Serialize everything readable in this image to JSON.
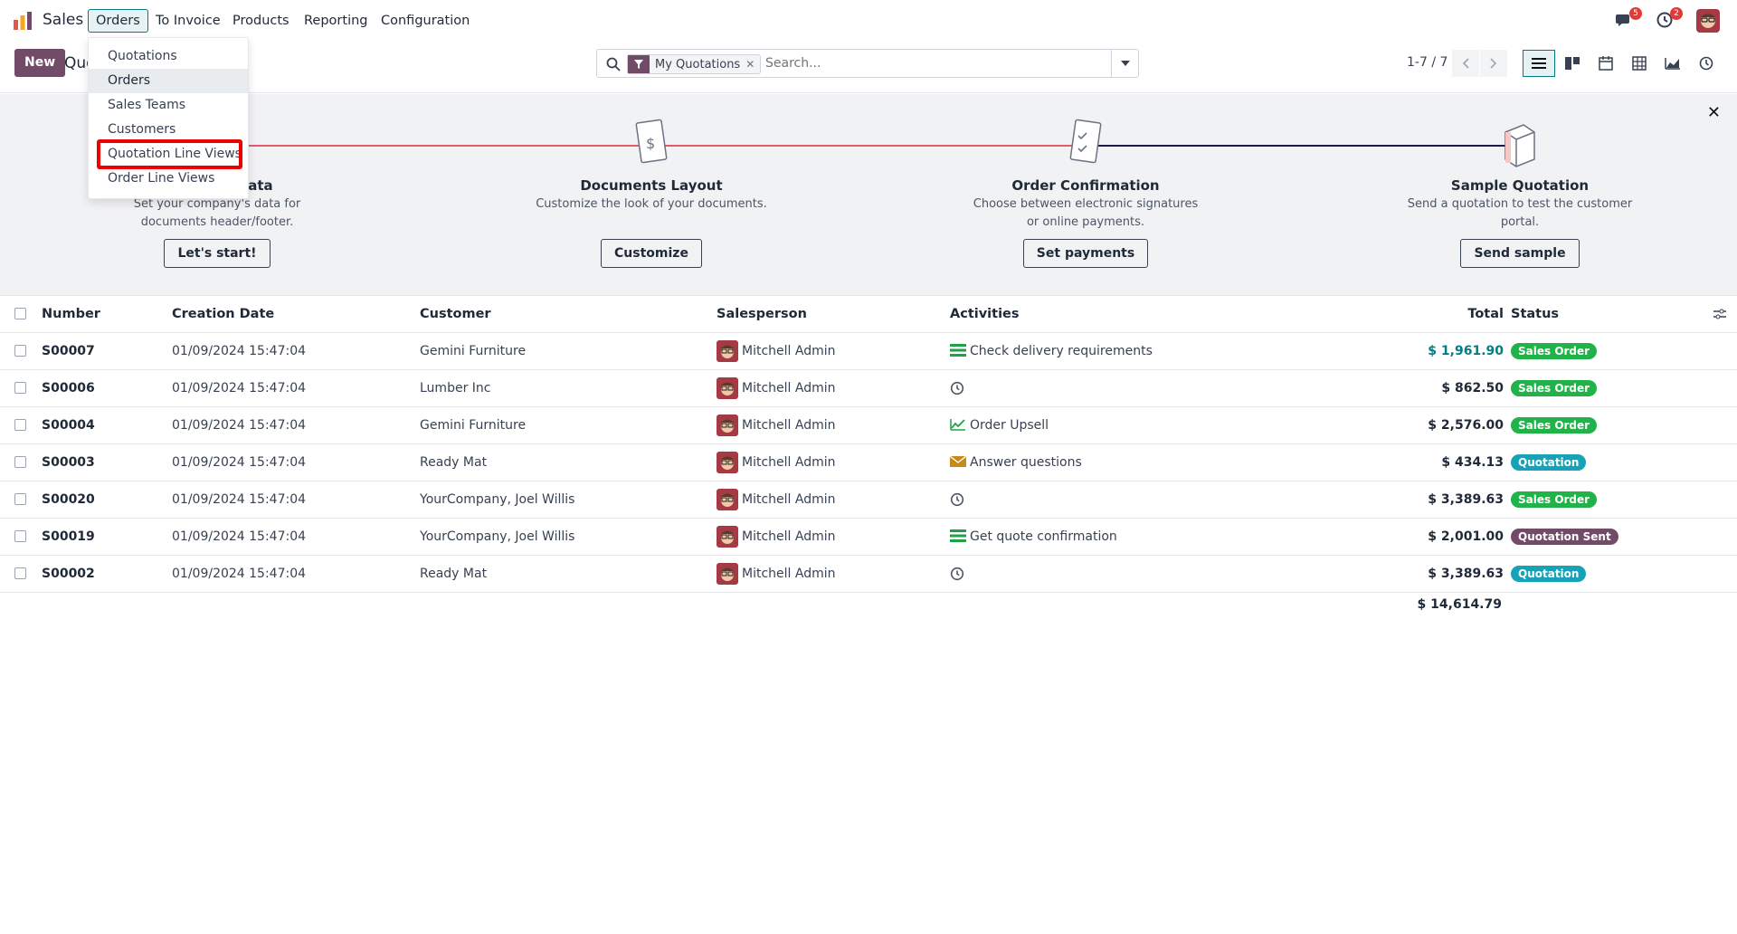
{
  "app": {
    "name": "Sales"
  },
  "menu": [
    "Orders",
    "To Invoice",
    "Products",
    "Reporting",
    "Configuration"
  ],
  "notifications": {
    "messages": "5",
    "activities": "2"
  },
  "control": {
    "new_label": "New",
    "breadcrumb": "Quotations",
    "facet_label": "My Quotations",
    "search_placeholder": "Search...",
    "pager": "1-7 / 7"
  },
  "dropdown": {
    "items": [
      "Quotations",
      "Orders",
      "Sales Teams",
      "Customers",
      "Quotation Line Views",
      "Order Line Views"
    ]
  },
  "onboarding": {
    "steps": [
      {
        "title": "Company Data",
        "desc": "Set your company's data for documents header/footer.",
        "button": "Let's start!"
      },
      {
        "title": "Documents Layout",
        "desc": "Customize the look of your documents.",
        "button": "Customize"
      },
      {
        "title": "Order Confirmation",
        "desc": "Choose between electronic signatures or online payments.",
        "button": "Set payments"
      },
      {
        "title": "Sample Quotation",
        "desc": "Send a quotation to test the customer portal.",
        "button": "Send sample"
      }
    ]
  },
  "table": {
    "headers": [
      "Number",
      "Creation Date",
      "Customer",
      "Salesperson",
      "Activities",
      "Total",
      "Status"
    ],
    "rows": [
      {
        "number": "S00007",
        "date": "01/09/2024 15:47:04",
        "customer": "Gemini Furniture",
        "salesperson": "Mitchell Admin",
        "activity": "Check delivery requirements",
        "activity_icon": "list-icon",
        "total": "$ 1,961.90",
        "status": "Sales Order"
      },
      {
        "number": "S00006",
        "date": "01/09/2024 15:47:04",
        "customer": "Lumber Inc",
        "salesperson": "Mitchell Admin",
        "activity": "",
        "activity_icon": "clock-icon",
        "total": "$ 862.50",
        "status": "Sales Order"
      },
      {
        "number": "S00004",
        "date": "01/09/2024 15:47:04",
        "customer": "Gemini Furniture",
        "salesperson": "Mitchell Admin",
        "activity": "Order Upsell",
        "activity_icon": "chart-icon",
        "total": "$ 2,576.00",
        "status": "Sales Order"
      },
      {
        "number": "S00003",
        "date": "01/09/2024 15:47:04",
        "customer": "Ready Mat",
        "salesperson": "Mitchell Admin",
        "activity": "Answer questions",
        "activity_icon": "envelope-icon",
        "total": "$ 434.13",
        "status": "Quotation"
      },
      {
        "number": "S00020",
        "date": "01/09/2024 15:47:04",
        "customer": "YourCompany, Joel Willis",
        "salesperson": "Mitchell Admin",
        "activity": "",
        "activity_icon": "clock-icon",
        "total": "$ 3,389.63",
        "status": "Sales Order"
      },
      {
        "number": "S00019",
        "date": "01/09/2024 15:47:04",
        "customer": "YourCompany, Joel Willis",
        "salesperson": "Mitchell Admin",
        "activity": "Get quote confirmation",
        "activity_icon": "list-icon",
        "total": "$ 2,001.00",
        "status": "Quotation Sent"
      },
      {
        "number": "S00002",
        "date": "01/09/2024 15:47:04",
        "customer": "Ready Mat",
        "salesperson": "Mitchell Admin",
        "activity": "",
        "activity_icon": "clock-icon",
        "total": "$ 3,389.63",
        "status": "Quotation"
      }
    ],
    "grand_total": "$ 14,614.79"
  },
  "colors": {
    "brand": "#714b67",
    "accent": "#017e84",
    "sales_order": "#21b24a",
    "quotation": "#17a2b8",
    "quotation_sent": "#714b67"
  }
}
